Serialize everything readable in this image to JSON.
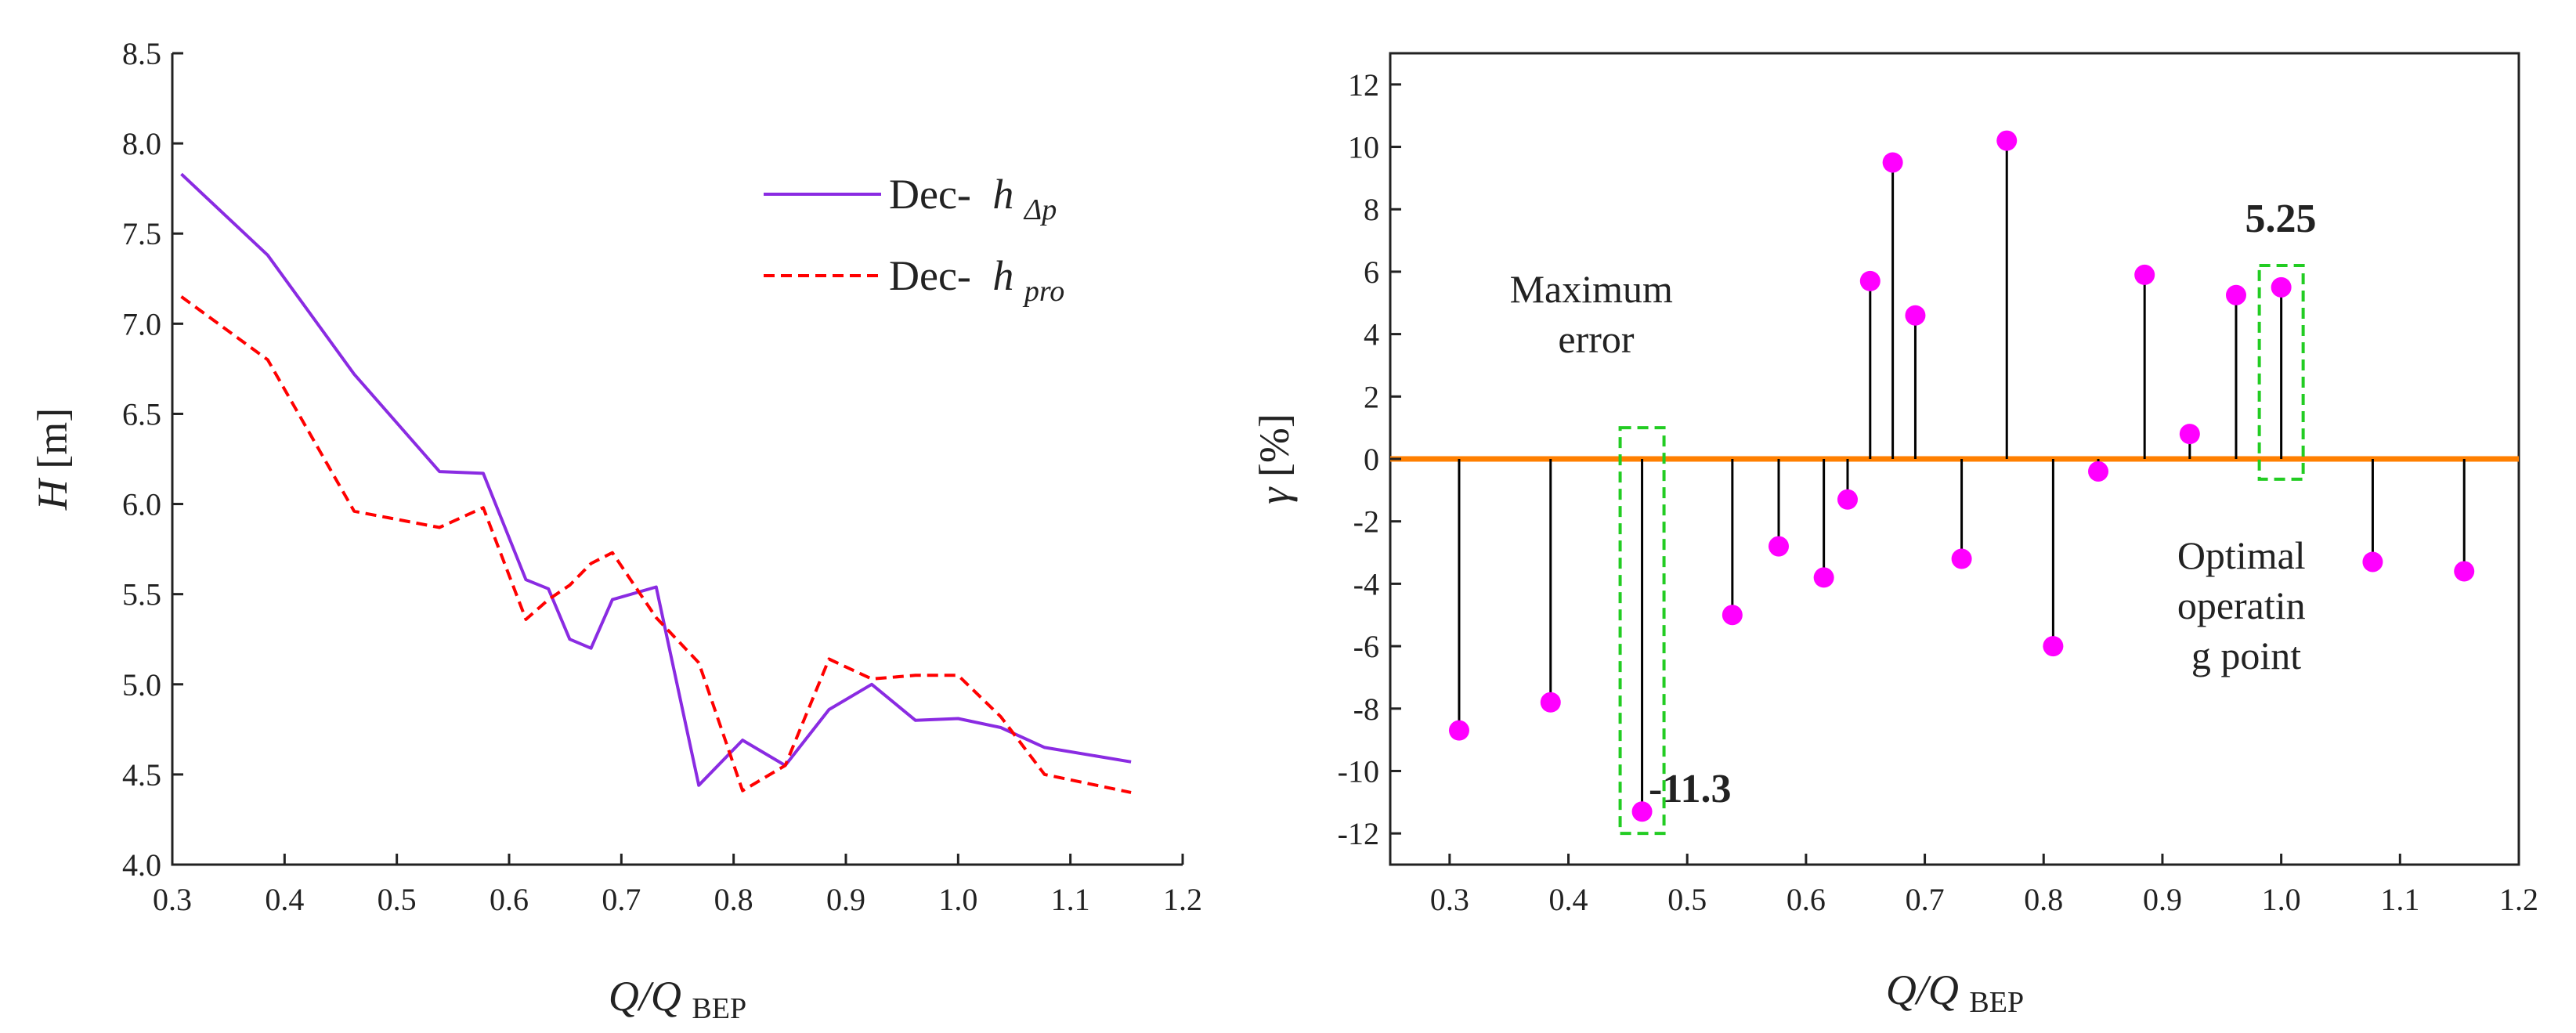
{
  "colors": {
    "series_dp": "#8a2be2",
    "series_pro": "#ff0000",
    "baseline": "#ff7f00",
    "points": "#ff00ff",
    "stems": "#000000",
    "highlight_box": "#22cc22",
    "value_label": "#cc0000"
  },
  "chart_data": [
    {
      "type": "line",
      "xlabel_main": "Q/Q",
      "xlabel_sub": "BEP",
      "ylabel_main": "H",
      "ylabel_unit": " [m]",
      "xlim": [
        0.3,
        1.2
      ],
      "ylim": [
        4.0,
        8.5
      ],
      "x_ticks": [
        "0.3",
        "0.4",
        "0.5",
        "0.6",
        "0.7",
        "0.8",
        "0.9",
        "1.0",
        "1.1",
        "1.2"
      ],
      "y_ticks": [
        "4.0",
        "4.5",
        "5.0",
        "5.5",
        "6.0",
        "6.5",
        "7.0",
        "7.5",
        "8.0",
        "8.5"
      ],
      "legend_position": "top-right",
      "series": [
        {
          "name": "Dec-",
          "name_italic": "h",
          "name_sub": "Δp",
          "style": "solid",
          "x": [
            0.308,
            0.385,
            0.462,
            0.538,
            0.577,
            0.615,
            0.635,
            0.654,
            0.673,
            0.692,
            0.731,
            0.769,
            0.808,
            0.846,
            0.885,
            0.923,
            0.962,
            1.0,
            1.038,
            1.077,
            1.154
          ],
          "y": [
            7.83,
            7.38,
            6.72,
            6.18,
            6.17,
            5.58,
            5.53,
            5.25,
            5.2,
            5.47,
            5.54,
            4.44,
            4.69,
            4.55,
            4.86,
            5.0,
            4.8,
            4.81,
            4.76,
            4.65,
            4.57
          ]
        },
        {
          "name": "Dec-",
          "name_italic": "h",
          "name_sub": "pro",
          "style": "dashed",
          "x": [
            0.308,
            0.385,
            0.462,
            0.538,
            0.577,
            0.615,
            0.635,
            0.654,
            0.673,
            0.692,
            0.731,
            0.769,
            0.808,
            0.846,
            0.885,
            0.923,
            0.962,
            1.0,
            1.038,
            1.077,
            1.154
          ],
          "y": [
            7.15,
            6.8,
            5.96,
            5.87,
            5.98,
            5.36,
            5.47,
            5.55,
            5.67,
            5.73,
            5.37,
            5.12,
            4.41,
            4.55,
            5.14,
            5.03,
            5.05,
            5.05,
            4.82,
            4.5,
            4.4
          ]
        }
      ]
    },
    {
      "type": "scatter",
      "xlabel_main": "Q/Q",
      "xlabel_sub": "BEP",
      "ylabel_main": "γ",
      "ylabel_unit": " [%]",
      "xlim": [
        0.25,
        1.2
      ],
      "ylim": [
        -13,
        13
      ],
      "baseline_y": 0,
      "x_ticks": [
        "0.3",
        "0.4",
        "0.5",
        "0.6",
        "0.7",
        "0.8",
        "0.9",
        "1.0",
        "1.1",
        "1.2"
      ],
      "y_ticks": [
        "-12",
        "-10",
        "-8",
        "-6",
        "-4",
        "-2",
        "0",
        "2",
        "4",
        "6",
        "8",
        "10",
        "12"
      ],
      "x": [
        0.308,
        0.385,
        0.462,
        0.538,
        0.577,
        0.615,
        0.635,
        0.654,
        0.673,
        0.692,
        0.731,
        0.769,
        0.808,
        0.846,
        0.885,
        0.923,
        0.962,
        1.0,
        1.077,
        1.154
      ],
      "y": [
        -8.7,
        -7.8,
        -11.3,
        -5.0,
        -2.8,
        -3.8,
        -1.3,
        5.7,
        9.5,
        4.6,
        -3.2,
        10.2,
        -6.0,
        -0.4,
        5.9,
        0.8,
        5.25,
        5.5,
        -3.3,
        -3.6
      ],
      "annotations": {
        "max_error_line1": "Maximum",
        "max_error_line2": "error",
        "max_error_value": "-11.3",
        "optimal_line1": "Optimal",
        "optimal_line2": "operatin",
        "optimal_line3": "g point",
        "optimal_value": "5.25"
      }
    }
  ]
}
